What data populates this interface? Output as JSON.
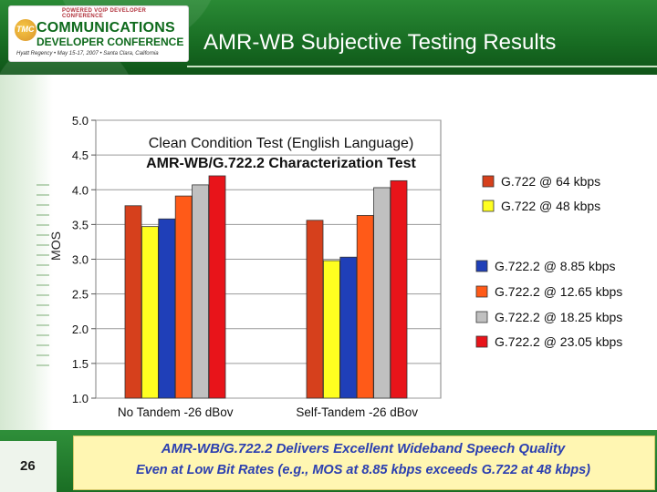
{
  "header": {
    "title": "AMR-WB Subjective Testing Results",
    "logo": {
      "top_text": "POWERED VOIP DEVELOPER CONFERENCE",
      "badge": "TMC",
      "line1": "COMMUNICATIONS",
      "line2": "DEVELOPER CONFERENCE",
      "line3": "Hyatt Regency • May 15-17, 2007 • Santa Clara, California"
    }
  },
  "chart_data": {
    "type": "bar",
    "title_lines": [
      "Clean Condition Test (English Language)",
      "AMR-WB/G.722.2 Characterization Test"
    ],
    "ylabel": "MOS",
    "xlabel": "",
    "ylim": [
      1.0,
      5.0
    ],
    "yticks": [
      "1.0",
      "1.5",
      "2.0",
      "2.5",
      "3.0",
      "3.5",
      "4.0",
      "4.5",
      "5.0"
    ],
    "grid": "horizontal",
    "legend_position": "right",
    "groups": [
      {
        "category": "No Tandem -26 dBov",
        "series": [
          {
            "name": "G.722 @ 64 kbps",
            "value": 3.77
          },
          {
            "name": "G.722 @ 48 kbps",
            "value": 3.47
          },
          {
            "name": "G.722.2 @ 8.85 kbps",
            "value": 3.58
          },
          {
            "name": "G.722.2 @ 12.65 kbps",
            "value": 3.91
          },
          {
            "name": "G.722.2 @ 18.25 kbps",
            "value": 4.07
          },
          {
            "name": "G.722.2 @ 23.05 kbps",
            "value": 4.2
          }
        ]
      },
      {
        "category": "Self-Tandem -26 dBov",
        "series": [
          {
            "name": "G.722 @ 64 kbps",
            "value": 3.56
          },
          {
            "name": "G.722 @ 48 kbps",
            "value": 2.98
          },
          {
            "name": "G.722.2 @ 8.85 kbps",
            "value": 3.03
          },
          {
            "name": "G.722.2 @ 12.65 kbps",
            "value": 3.63
          },
          {
            "name": "G.722.2 @ 18.25 kbps",
            "value": 4.03
          },
          {
            "name": "G.722.2 @ 23.05 kbps",
            "value": 4.13
          }
        ]
      }
    ],
    "legend": [
      {
        "name": "G.722 @ 64 kbps",
        "color": "#d6401c"
      },
      {
        "name": "G.722 @ 48 kbps",
        "color": "#ffff20"
      },
      {
        "name": "G.722.2 @ 8.85 kbps",
        "color": "#1f3fb8"
      },
      {
        "name": "G.722.2 @ 12.65 kbps",
        "color": "#ff5a18"
      },
      {
        "name": "G.722.2 @ 18.25 kbps",
        "color": "#c0c0c0"
      },
      {
        "name": "G.722.2 @ 23.05 kbps",
        "color": "#e8141a"
      }
    ]
  },
  "footer": {
    "page_number": "26",
    "line1": "AMR-WB/G.722.2 Delivers Excellent Wideband Speech Quality",
    "line2": "Even at Low Bit Rates (e.g., MOS at 8.85 kbps exceeds G.722 at 48 kbps)"
  }
}
